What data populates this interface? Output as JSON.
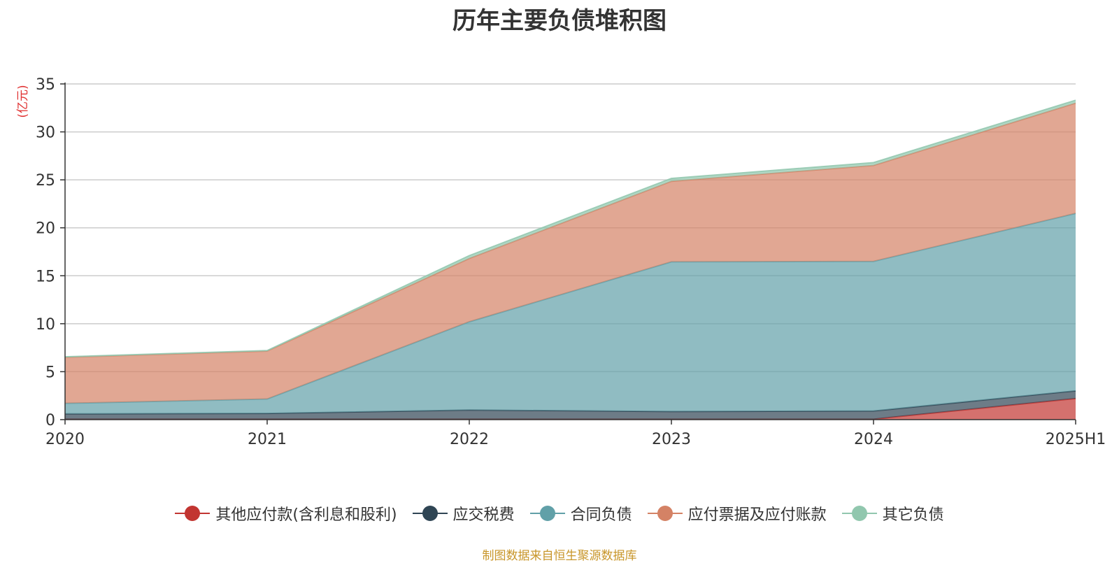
{
  "chart_data": {
    "type": "area",
    "stacked": true,
    "title": "历年主要负债堆积图",
    "ylabel": "(亿元)",
    "xlabel": "",
    "categories": [
      "2020",
      "2021",
      "2022",
      "2023",
      "2024",
      "2025H1"
    ],
    "ylim": [
      0,
      35
    ],
    "yticks": [
      0,
      5,
      10,
      15,
      20,
      25,
      30,
      35
    ],
    "grid": true,
    "legend_position": "bottom",
    "series": [
      {
        "name": "其他应付款(含利息和股利)",
        "color": "#c23531",
        "values": [
          0.05,
          0.05,
          0.05,
          0.05,
          0.05,
          2.2
        ]
      },
      {
        "name": "应交税费",
        "color": "#2f4554",
        "values": [
          0.55,
          0.6,
          0.95,
          0.8,
          0.85,
          0.8
        ]
      },
      {
        "name": "合同负债",
        "color": "#61a0a8",
        "values": [
          1.1,
          1.5,
          9.2,
          15.6,
          15.6,
          18.5
        ]
      },
      {
        "name": "应付票据及应付账款",
        "color": "#d48265",
        "values": [
          4.8,
          5.0,
          6.6,
          8.4,
          10.0,
          11.5
        ]
      },
      {
        "name": "其它负债",
        "color": "#91c7ae",
        "values": [
          0.05,
          0.05,
          0.3,
          0.3,
          0.3,
          0.3
        ]
      }
    ]
  },
  "footer": {
    "source": "制图数据来自恒生聚源数据库"
  }
}
